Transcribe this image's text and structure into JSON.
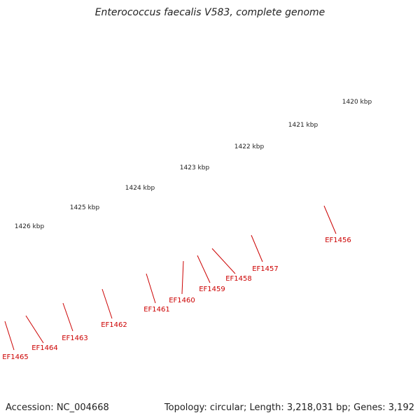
{
  "title": "Enterococcus faecalis V583, complete genome",
  "footer": {
    "accession": "Accession: NC_004668",
    "summary": "Topology: circular; Length: 3,218,031 bp; Genes: 3,192"
  },
  "colors": {
    "backbone": "#808080",
    "forward_gene": "#ee0000",
    "reverse_gene": "#5a5a5a",
    "tick": "#1a7a1a",
    "gene_label": "#cc0000"
  },
  "scale_labels": [
    "1420 kbp",
    "1421 kbp",
    "1422 kbp",
    "1423 kbp",
    "1424 kbp",
    "1425 kbp",
    "1426 kbp"
  ],
  "gene_labels": [
    "EF1456",
    "EF1457",
    "EF1458",
    "EF1459",
    "EF1460",
    "EF1461",
    "EF1462",
    "EF1463",
    "EF1464",
    "EF1465"
  ]
}
